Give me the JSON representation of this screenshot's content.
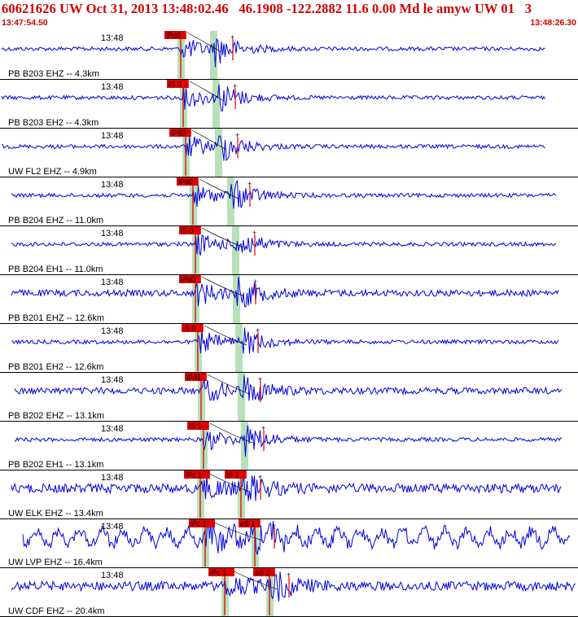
{
  "header": {
    "title": "60621626 UW Oct 31, 2013 13:48:02.46   46.1908 -122.2882 11.6 0.00 Md le amyw UW 01   3",
    "start_time": "13:47:54.50",
    "end_time": "13:48:26.30"
  },
  "colors": {
    "trace": "#0000e0",
    "pick": "#e00000",
    "window": "#b8e0b8",
    "header_text": "#d00000"
  },
  "traces": [
    {
      "time_label": "13:48",
      "station_label": "PB B203 EHZ -- 4.3km",
      "pick_label": "iPd0",
      "pick2_label": "",
      "amp": "small"
    },
    {
      "time_label": "13:48",
      "station_label": "PB B203 EH2 -- 4.3km",
      "pick_label": "iS 0",
      "pick2_label": "",
      "amp": "small"
    },
    {
      "time_label": "13:48",
      "station_label": "UW FL2 EHZ -- 4.9km",
      "pick_label": "iPd0",
      "pick2_label": "",
      "amp": "small"
    },
    {
      "time_label": "13:48",
      "station_label": "PB B204 EHZ -- 11.0km",
      "pick_label": "iPd0",
      "pick2_label": "",
      "amp": "small"
    },
    {
      "time_label": "13:48",
      "station_label": "PB B204 EH1 -- 11.0km",
      "pick_label": "iS 0",
      "pick2_label": "",
      "amp": "small"
    },
    {
      "time_label": "13:48",
      "station_label": "PB B201 EHZ -- 12.6km",
      "pick_label": "iPd0",
      "pick2_label": "",
      "amp": "medium"
    },
    {
      "time_label": "13:48",
      "station_label": "PB B201 EH2 -- 12.6km",
      "pick_label": "iS 0",
      "pick2_label": "",
      "amp": "small"
    },
    {
      "time_label": "13:48",
      "station_label": "PB B202 EHZ -- 13.1km",
      "pick_label": "iPd1",
      "pick2_label": "",
      "amp": "medium"
    },
    {
      "time_label": "13:48",
      "station_label": "PB B202 EH1 -- 13.1km",
      "pick_label": "iS 1",
      "pick2_label": "",
      "amp": "small"
    },
    {
      "time_label": "13:48",
      "station_label": "UW ELK EHZ -- 13.4km",
      "pick_label": "iPc 1",
      "pick2_label": "iS 1",
      "amp": "large"
    },
    {
      "time_label": "13:48",
      "station_label": "UW LVP EHZ -- 16.4km",
      "pick_label": "iPc 1",
      "pick2_label": "eS 1",
      "amp": "xlarge"
    },
    {
      "time_label": "13:48",
      "station_label": "UW CDF EHZ -- 20.4km",
      "pick_label": "iPc 1",
      "pick2_label": "eS 2",
      "amp": "large"
    }
  ]
}
